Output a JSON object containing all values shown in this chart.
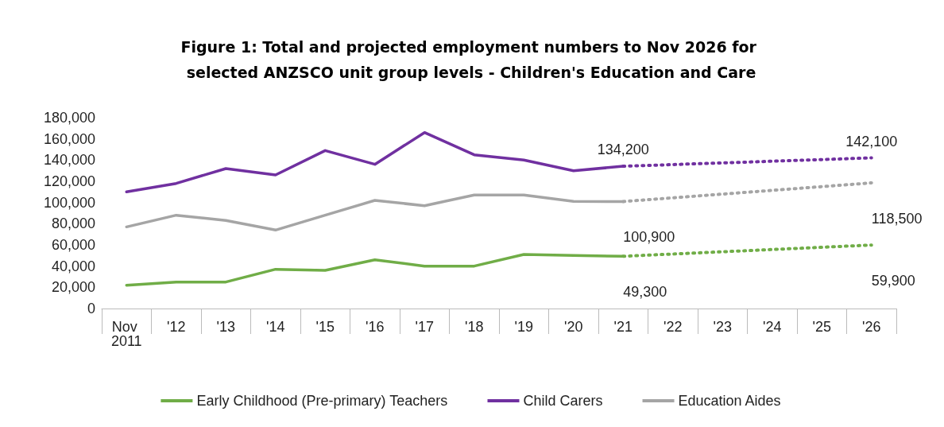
{
  "chart_data": {
    "type": "line",
    "title": "Figure 1: Total and projected employment numbers to Nov 2026 for selected ANZSCO unit group levels - Children's Education and Care",
    "categories": [
      "Nov 2011",
      "'12",
      "'13",
      "'14",
      "'15",
      "'16",
      "'17",
      "'18",
      "'19",
      "'20",
      "'21",
      "'22",
      "'23",
      "'24",
      "'25",
      "'26"
    ],
    "series": [
      {
        "name": "Early Childhood (Pre-primary) Teachers",
        "color": "#70ad47",
        "line_style": "solid",
        "values": [
          22000,
          25000,
          25000,
          37000,
          36000,
          46000,
          40000,
          40000,
          51000,
          50000,
          49300,
          null,
          null,
          null,
          null,
          null
        ]
      },
      {
        "name": "Child Carers",
        "color": "#7030a0",
        "line_style": "solid",
        "values": [
          110000,
          118000,
          132000,
          126000,
          149000,
          136000,
          166000,
          145000,
          140000,
          130000,
          134200,
          null,
          null,
          null,
          null,
          null
        ]
      },
      {
        "name": "Education Aides",
        "color": "#a5a5a5",
        "line_style": "solid",
        "values": [
          77000,
          88000,
          83000,
          74000,
          88000,
          102000,
          97000,
          107000,
          107000,
          101000,
          100900,
          null,
          null,
          null,
          null,
          null
        ]
      },
      {
        "color": "#70ad47",
        "line_style": "dotted",
        "values": [
          null,
          null,
          null,
          null,
          null,
          null,
          null,
          null,
          null,
          null,
          49300,
          null,
          null,
          null,
          null,
          59900
        ],
        "value_labels": [
          null,
          null,
          null,
          null,
          null,
          null,
          null,
          null,
          null,
          null,
          "49,300",
          null,
          null,
          null,
          null,
          "59,900"
        ]
      },
      {
        "color": "#7030a0",
        "line_style": "dotted",
        "values": [
          null,
          null,
          null,
          null,
          null,
          null,
          null,
          null,
          null,
          null,
          134200,
          null,
          null,
          null,
          null,
          142100
        ],
        "value_labels": [
          null,
          null,
          null,
          null,
          null,
          null,
          null,
          null,
          null,
          null,
          "134,200",
          null,
          null,
          null,
          null,
          "142,100"
        ]
      },
      {
        "color": "#a5a5a5",
        "line_style": "dotted",
        "values": [
          null,
          null,
          null,
          null,
          null,
          null,
          null,
          null,
          null,
          null,
          100900,
          null,
          null,
          null,
          null,
          118500
        ],
        "value_labels": [
          null,
          null,
          null,
          null,
          null,
          null,
          null,
          null,
          null,
          null,
          "100,900",
          null,
          null,
          null,
          null,
          "118,500"
        ]
      }
    ],
    "ylim": [
      0,
      180000
    ],
    "yticks": [
      0,
      {
        "value": 20000,
        "label": "20,000"
      },
      {
        "value": 40000,
        "label": "40,000"
      },
      {
        "value": 60000,
        "label": "60,000"
      },
      {
        "value": 80000,
        "label": "80,000"
      },
      {
        "value": 100000,
        "label": "100,000"
      },
      {
        "value": 120000,
        "label": "120,000"
      },
      {
        "value": 140000,
        "label": "140,000"
      },
      {
        "value": 160000,
        "label": "160,000"
      },
      {
        "value": 180000,
        "label": "180,000"
      }
    ],
    "grid": false,
    "legend": "bottom",
    "marker": "none"
  }
}
